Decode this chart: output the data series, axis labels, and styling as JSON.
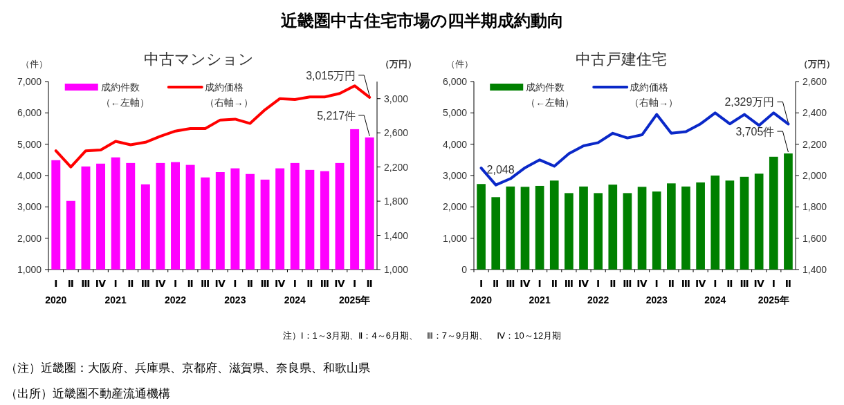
{
  "chart_data": [
    {
      "type": "bar",
      "title": "中古マンション",
      "ylabel": "（件）",
      "y2label": "（万円）",
      "legend": "top left",
      "annotations": [
        "近畿圏中古住宅市場の四半期成約動向",
        "注）Ⅰ：1～3月期、Ⅱ：4～6月期、　Ⅲ：7～9月期、　Ⅳ：10～12月期",
        "（注）近畿圏：大阪府、兵庫県、京都府、滋賀県、奈良県、和歌山県",
        "（出所）近畿圏不動産流通機構"
      ],
      "categories": [
        "Ⅰ\n2020",
        "Ⅱ",
        "Ⅲ",
        "Ⅳ",
        "Ⅰ\n2021",
        "Ⅱ",
        "Ⅲ",
        "Ⅳ",
        "Ⅰ\n2022",
        "Ⅱ",
        "Ⅲ",
        "Ⅳ",
        "Ⅰ\n2023",
        "Ⅱ",
        "Ⅲ",
        "Ⅳ",
        "Ⅰ\n2024",
        "Ⅱ",
        "Ⅲ",
        "Ⅳ",
        "Ⅰ\n2025年",
        "Ⅱ"
      ],
      "series": [
        {
          "name": "成約件数（←左軸）",
          "color": "#ff00ff",
          "values": [
            4490,
            3190,
            4290,
            4380,
            4580,
            4400,
            3720,
            4400,
            4430,
            4340,
            3940,
            4110,
            4230,
            4050,
            3870,
            4230,
            4400,
            4180,
            4140,
            4400,
            5480,
            5217
          ],
          "value_labels": [
            null,
            null,
            null,
            null,
            null,
            null,
            null,
            null,
            null,
            null,
            null,
            null,
            null,
            null,
            null,
            null,
            null,
            null,
            null,
            null,
            null,
            "5,217件"
          ]
        },
        {
          "name": "成約価格（右軸→）",
          "type": "line",
          "axis": "y2",
          "color": "#ff0000",
          "values": [
            2390,
            2200,
            2390,
            2400,
            2500,
            2460,
            2490,
            2560,
            2620,
            2650,
            2650,
            2750,
            2760,
            2710,
            2870,
            3000,
            2990,
            3020,
            3020,
            3060,
            3150,
            3015
          ],
          "value_labels": [
            null,
            null,
            null,
            null,
            null,
            null,
            null,
            null,
            null,
            null,
            null,
            null,
            null,
            null,
            null,
            null,
            null,
            null,
            null,
            null,
            null,
            "3,015万円"
          ]
        }
      ],
      "ylim": [
        1000,
        7000
      ],
      "yticks": [
        {
          "value": 1000,
          "label": "1,000"
        },
        {
          "value": 2000,
          "label": "2,000"
        },
        {
          "value": 3000,
          "label": "3,000"
        },
        {
          "value": 4000,
          "label": "4,000"
        },
        {
          "value": 5000,
          "label": "5,000"
        },
        {
          "value": 6000,
          "label": "6,000"
        },
        {
          "value": 7000,
          "label": "7,000"
        }
      ],
      "y2lim": [
        1000,
        3200
      ],
      "y2ticks": [
        {
          "value": 1000,
          "label": "1,000"
        },
        {
          "value": 1400,
          "label": "1,400"
        },
        {
          "value": 1800,
          "label": "1,800"
        },
        {
          "value": 2200,
          "label": "2,200"
        },
        {
          "value": 2600,
          "label": "2,600"
        },
        {
          "value": 3000,
          "label": "3,000"
        }
      ]
    },
    {
      "type": "bar",
      "title": "中古戸建住宅",
      "ylabel": "（件）",
      "y2label": "（万円）",
      "legend": "top left",
      "categories": [
        "Ⅰ\n2020",
        "Ⅱ",
        "Ⅲ",
        "Ⅳ",
        "Ⅰ\n2021",
        "Ⅱ",
        "Ⅲ",
        "Ⅳ",
        "Ⅰ\n2022",
        "Ⅱ",
        "Ⅲ",
        "Ⅳ",
        "Ⅰ\n2023",
        "Ⅱ",
        "Ⅲ",
        "Ⅳ",
        "Ⅰ\n2024",
        "Ⅱ",
        "Ⅲ",
        "Ⅳ",
        "Ⅰ\n2025年",
        "Ⅱ"
      ],
      "series": [
        {
          "name": "成約件数（←左軸）",
          "color": "#008000",
          "values": [
            2730,
            2310,
            2650,
            2640,
            2670,
            2840,
            2440,
            2650,
            2440,
            2710,
            2440,
            2640,
            2490,
            2750,
            2650,
            2780,
            3000,
            2840,
            2960,
            3060,
            3600,
            3705
          ],
          "value_labels": [
            null,
            null,
            null,
            null,
            null,
            null,
            null,
            null,
            null,
            null,
            null,
            null,
            null,
            null,
            null,
            null,
            null,
            null,
            null,
            null,
            null,
            "3,705件"
          ]
        },
        {
          "name": "成約価格（右軸→）",
          "type": "line",
          "axis": "y2",
          "color": "#0a28c8",
          "values": [
            2048,
            1940,
            1980,
            2050,
            2100,
            2060,
            2140,
            2190,
            2210,
            2270,
            2240,
            2260,
            2390,
            2270,
            2280,
            2330,
            2400,
            2330,
            2390,
            2320,
            2400,
            2329
          ],
          "value_labels": [
            "2,048",
            null,
            null,
            null,
            null,
            null,
            null,
            null,
            null,
            null,
            null,
            null,
            null,
            null,
            null,
            null,
            null,
            null,
            null,
            null,
            null,
            "2,329万円"
          ]
        }
      ],
      "ylim": [
        0,
        6000
      ],
      "yticks": [
        0,
        {
          "value": 1000,
          "label": "1,000"
        },
        {
          "value": 2000,
          "label": "2,000"
        },
        {
          "value": 3000,
          "label": "3,000"
        },
        {
          "value": 4000,
          "label": "4,000"
        },
        {
          "value": 5000,
          "label": "5,000"
        },
        {
          "value": 6000,
          "label": "6,000"
        }
      ],
      "y2lim": [
        1400,
        2600
      ],
      "y2ticks": [
        {
          "value": 1400,
          "label": "1,400"
        },
        {
          "value": 1600,
          "label": "1,600"
        },
        {
          "value": 1800,
          "label": "1,800"
        },
        {
          "value": 2000,
          "label": "2,000"
        },
        {
          "value": 2200,
          "label": "2,200"
        },
        {
          "value": 2400,
          "label": "2,400"
        },
        {
          "value": 2600,
          "label": "2,600"
        }
      ]
    }
  ]
}
